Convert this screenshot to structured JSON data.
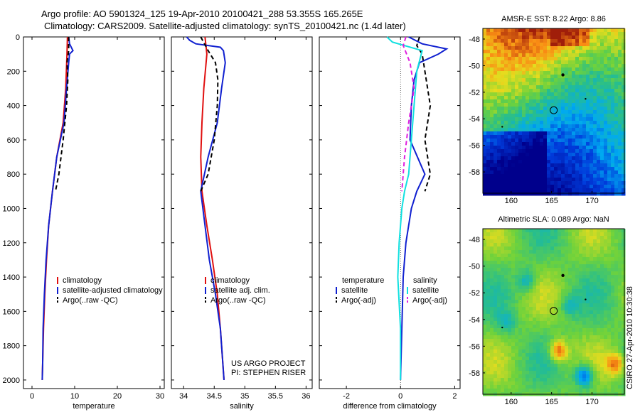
{
  "header": {
    "line1": "Argo profile: AO 5901324_125 19-Apr-2010 20100421_288 53.355S 165.265E",
    "line2": "Climatology: CARS2009. Satellite-adjusted climatology: synTS_20100421.nc (1.4d later)"
  },
  "credit": {
    "line1": "US ARGO PROJECT",
    "line2": "PI: STEPHEN RISER"
  },
  "side_label": "CSIRO 27-Apr-2010 10:30:38",
  "colors": {
    "climatology": "#e01010",
    "satellite": "#1020d0",
    "argo": "#000000",
    "satellite_diff_salinity": "#10e0e0",
    "argo_diff_salinity": "#e020e0"
  },
  "chart_data": [
    {
      "type": "line",
      "xlabel": "temperature",
      "ylabel": "",
      "xlim": [
        -2,
        31
      ],
      "ylim": [
        2050,
        0
      ],
      "xticks": [
        0,
        10,
        20,
        30
      ],
      "yticks": [
        0,
        200,
        400,
        600,
        800,
        1000,
        1200,
        1400,
        1600,
        1800,
        2000
      ],
      "legend": [
        "climatology",
        "satellite-adjusted climatology",
        "Argo(..raw -QC)"
      ],
      "series": [
        {
          "name": "climatology",
          "color": "#e01010",
          "dash": "",
          "depth": [
            0,
            100,
            300,
            500,
            700,
            900,
            1100,
            1300,
            1500,
            1700,
            1900,
            2000
          ],
          "values": [
            8.3,
            8.2,
            7.9,
            7.3,
            5.8,
            4.8,
            3.9,
            3.4,
            3.0,
            2.7,
            2.5,
            2.4
          ]
        },
        {
          "name": "satellite-adjusted climatology",
          "color": "#1020d0",
          "dash": "",
          "depth": [
            0,
            40,
            80,
            100,
            150,
            300,
            500,
            700,
            900,
            1100,
            1300,
            1500,
            1700,
            1900,
            2000
          ],
          "values": [
            8.6,
            8.8,
            9.6,
            8.8,
            8.6,
            8.1,
            7.5,
            5.8,
            4.8,
            3.9,
            3.3,
            2.9,
            2.6,
            2.5,
            2.4
          ]
        },
        {
          "name": "Argo(..raw -QC)",
          "color": "#000000",
          "dash": "6,4",
          "depth": [
            0,
            80,
            150,
            250,
            400,
            600,
            800,
            900
          ],
          "values": [
            8.6,
            8.6,
            8.2,
            8.4,
            8.1,
            7.3,
            6.3,
            5.5
          ]
        }
      ]
    },
    {
      "type": "line",
      "xlabel": "salinity",
      "ylabel": "",
      "xlim": [
        33.8,
        36.1
      ],
      "ylim": [
        2050,
        0
      ],
      "xticks": [
        34,
        34.5,
        35,
        35.5,
        36
      ],
      "legend": [
        "climatology",
        "satellite adj. clim.",
        "Argo(..raw -QC)"
      ],
      "series": [
        {
          "name": "climatology",
          "color": "#e01010",
          "dash": "",
          "depth": [
            0,
            100,
            300,
            500,
            700,
            900,
            1100,
            1300,
            1500,
            1700,
            1900,
            2000
          ],
          "values": [
            34.35,
            34.38,
            34.33,
            34.3,
            34.28,
            34.3,
            34.38,
            34.47,
            34.55,
            34.6,
            34.64,
            34.66
          ]
        },
        {
          "name": "satellite adj. clim.",
          "color": "#1020d0",
          "dash": "",
          "depth": [
            0,
            20,
            40,
            60,
            80,
            150,
            300,
            500,
            700,
            900,
            1100,
            1300,
            1500,
            1700,
            1900,
            2000
          ],
          "values": [
            34.05,
            34.1,
            34.2,
            34.6,
            34.65,
            34.68,
            34.62,
            34.55,
            34.4,
            34.28,
            34.35,
            34.42,
            34.52,
            34.6,
            34.64,
            34.66
          ]
        },
        {
          "name": "Argo(..raw -QC)",
          "color": "#000000",
          "dash": "6,4",
          "depth": [
            0,
            80,
            150,
            250,
            400,
            600,
            800,
            900
          ],
          "values": [
            34.28,
            34.4,
            34.52,
            34.56,
            34.55,
            34.5,
            34.4,
            34.28
          ]
        }
      ]
    },
    {
      "type": "line",
      "xlabel": "difference from climatology",
      "ylabel": "",
      "xlim": [
        -3,
        2.2
      ],
      "ylim": [
        2050,
        0
      ],
      "xticks": [
        -2,
        0,
        2
      ],
      "legend_groups": [
        {
          "title": "temperature",
          "items": [
            "satellite",
            "Argo(-adj)"
          ]
        },
        {
          "title": "salinity",
          "items": [
            "satellite",
            "Argo(-adj)"
          ]
        }
      ],
      "series": [
        {
          "name": "temperature satellite",
          "color": "#1020d0",
          "dash": "",
          "depth": [
            0,
            40,
            70,
            100,
            150,
            250,
            400,
            600,
            800,
            900,
            1000,
            1200,
            1400,
            1700,
            2000
          ],
          "values": [
            0.3,
            0.8,
            1.7,
            1.4,
            0.7,
            0.5,
            0.4,
            0.35,
            0.9,
            0.6,
            0.4,
            0.2,
            0.1,
            0.05,
            0.0
          ]
        },
        {
          "name": "temperature Argo(-adj)",
          "color": "#000000",
          "dash": "6,4",
          "depth": [
            0,
            50,
            100,
            200,
            400,
            600,
            800,
            900
          ],
          "values": [
            0.7,
            0.6,
            0.8,
            0.9,
            1.1,
            0.9,
            1.1,
            0.9
          ]
        },
        {
          "name": "salinity satellite",
          "color": "#10e0e0",
          "dash": "",
          "depth": [
            0,
            30,
            80,
            200,
            400,
            600,
            800,
            900,
            1000,
            1200,
            1400,
            1700,
            2000
          ],
          "values": [
            -0.5,
            -0.3,
            0.8,
            0.6,
            0.5,
            0.4,
            0.3,
            0.15,
            0.05,
            -0.05,
            -0.1,
            0.0,
            0.0
          ]
        },
        {
          "name": "salinity Argo(-adj)",
          "color": "#e020e0",
          "dash": "6,4",
          "depth": [
            0,
            50,
            150,
            300,
            500,
            700,
            900
          ],
          "values": [
            0.2,
            0.1,
            0.35,
            0.5,
            0.3,
            0.15,
            0.05
          ]
        }
      ],
      "zero_line": true
    },
    {
      "type": "heatmap",
      "title": "AMSR-E SST: 8.22 Argo: 8.86",
      "xlim": [
        156.5,
        174
      ],
      "ylim": [
        -59.6,
        -47.2
      ],
      "xticks": [
        160,
        165,
        170
      ],
      "yticks": [
        -48,
        -50,
        -52,
        -54,
        -56,
        -58
      ],
      "marker": {
        "lon": 165.265,
        "lat": -53.355
      }
    },
    {
      "type": "heatmap",
      "title": "Altimetric SLA: 0.089 Argo: NaN",
      "xlim": [
        156.5,
        174
      ],
      "ylim": [
        -59.6,
        -47.2
      ],
      "xticks": [
        160,
        165,
        170
      ],
      "yticks": [
        -48,
        -50,
        -52,
        -54,
        -56,
        -58
      ],
      "marker": {
        "lon": 165.265,
        "lat": -53.355
      }
    }
  ]
}
